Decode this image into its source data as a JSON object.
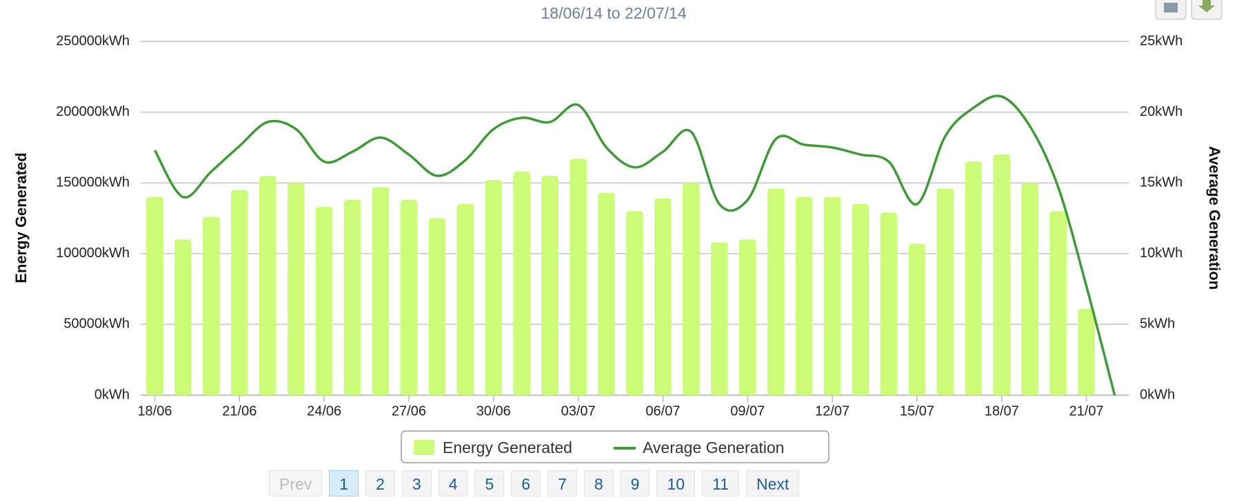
{
  "chart_data": {
    "type": "bar-line",
    "subtitle": "18/06/14 to 22/07/14",
    "categories": [
      "18/06",
      null,
      null,
      "21/06",
      null,
      null,
      "24/06",
      null,
      null,
      "27/06",
      null,
      null,
      "30/06",
      null,
      null,
      "03/07",
      null,
      null,
      "06/07",
      null,
      null,
      "09/07",
      null,
      null,
      "12/07",
      null,
      null,
      "15/07",
      null,
      null,
      "18/07",
      null,
      null,
      "21/07",
      null
    ],
    "series": [
      {
        "name": "Energy Generated",
        "color": "#ccfc77",
        "type": "bar",
        "values": [
          140000,
          110000,
          126000,
          145000,
          155000,
          150000,
          133000,
          138000,
          147000,
          138000,
          125000,
          135000,
          152000,
          158000,
          155000,
          167000,
          143000,
          130000,
          139000,
          150000,
          108000,
          110000,
          146000,
          140000,
          140000,
          135000,
          129000,
          107000,
          146000,
          165000,
          170000,
          150000,
          130000,
          61000,
          0
        ]
      },
      {
        "name": "Average Generation",
        "color": "#3d9a35",
        "type": "line",
        "axis": "y2",
        "values": [
          17.3,
          14,
          15.8,
          17.6,
          19.3,
          18.8,
          16.5,
          17.2,
          18.2,
          17,
          15.5,
          16.6,
          18.8,
          19.6,
          19.3,
          20.5,
          17.5,
          16.1,
          17.2,
          18.6,
          13.5,
          13.8,
          18.1,
          17.7,
          17.5,
          17,
          16.5,
          13.5,
          18.3,
          20.3,
          21.1,
          19,
          14.7,
          7.7,
          0
        ]
      }
    ],
    "ylabel": "Energy Generated",
    "y2label": "Average Generation",
    "ylim": [
      0,
      250000
    ],
    "yticks": [
      {
        "value": 0,
        "label": "0kWh"
      },
      {
        "value": 50000,
        "label": "50000kWh"
      },
      {
        "value": 100000,
        "label": "100000kWh"
      },
      {
        "value": 150000,
        "label": "150000kWh"
      },
      {
        "value": 200000,
        "label": "200000kWh"
      },
      {
        "value": 250000,
        "label": "250000kWh"
      }
    ],
    "y2lim": [
      0,
      25
    ],
    "y2ticks": [
      {
        "value": 0,
        "label": "0kWh"
      },
      {
        "value": 5,
        "label": "5kWh"
      },
      {
        "value": 10,
        "label": "10kWh"
      },
      {
        "value": 15,
        "label": "15kWh"
      },
      {
        "value": 20,
        "label": "20kWh"
      },
      {
        "value": 25,
        "label": "25kWh"
      }
    ],
    "grid": true,
    "legend": "bottom"
  },
  "pagination": {
    "items": [
      "Prev",
      "1",
      "2",
      "3",
      "4",
      "5",
      "6",
      "7",
      "8",
      "9",
      "10",
      "11",
      "Next"
    ],
    "active": "1",
    "disabled": "Prev"
  }
}
